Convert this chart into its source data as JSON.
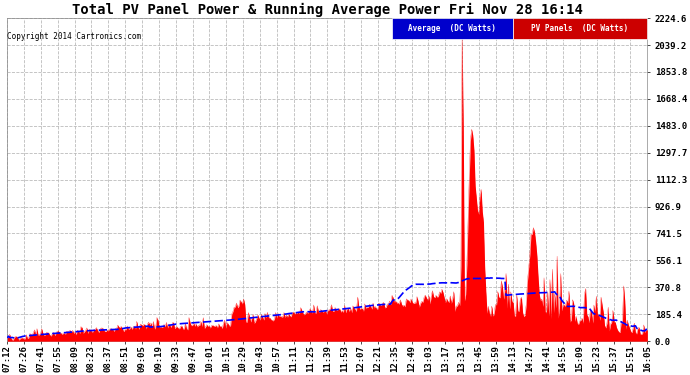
{
  "title": "Total PV Panel Power & Running Average Power Fri Nov 28 16:14",
  "copyright": "Copyright 2014 Cartronics.com",
  "ylim": [
    0,
    2224.6
  ],
  "yticks": [
    0.0,
    185.4,
    370.8,
    556.1,
    741.5,
    926.9,
    1112.3,
    1297.7,
    1483.0,
    1668.4,
    1853.8,
    2039.2,
    2224.6
  ],
  "xtick_labels": [
    "07:12",
    "07:26",
    "07:41",
    "07:55",
    "08:09",
    "08:23",
    "08:37",
    "08:51",
    "09:05",
    "09:19",
    "09:33",
    "09:47",
    "10:01",
    "10:15",
    "10:29",
    "10:43",
    "10:57",
    "11:11",
    "11:25",
    "11:39",
    "11:53",
    "12:07",
    "12:21",
    "12:35",
    "12:49",
    "13:03",
    "13:17",
    "13:31",
    "13:45",
    "13:59",
    "14:13",
    "14:27",
    "14:41",
    "14:55",
    "15:09",
    "15:23",
    "15:37",
    "15:51",
    "16:05"
  ],
  "background_color": "#ffffff",
  "plot_bg_color": "#ffffff",
  "grid_color": "#bbbbbb",
  "title_fontsize": 10,
  "tick_fontsize": 6.5,
  "pv_color": "#ff0000",
  "avg_color": "#0000ff",
  "legend_blue_bg": "#0000cc",
  "legend_red_bg": "#cc0000"
}
